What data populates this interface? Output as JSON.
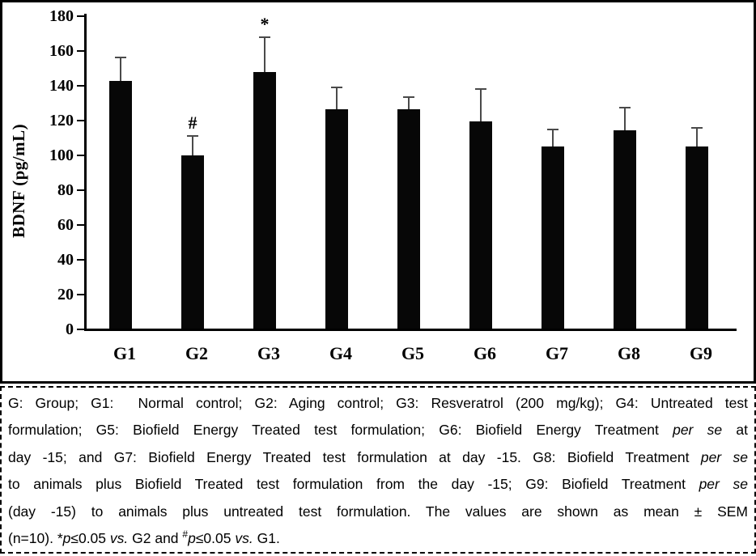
{
  "chart_data": {
    "type": "bar",
    "title": "",
    "xlabel": "",
    "ylabel": "BDNF (pg/mL)",
    "ylim": [
      0,
      180
    ],
    "ytick_interval": 20,
    "yticks": [
      0,
      20,
      40,
      60,
      80,
      100,
      120,
      140,
      160,
      180
    ],
    "categories": [
      "G1",
      "G2",
      "G3",
      "G4",
      "G5",
      "G6",
      "G7",
      "G8",
      "G9"
    ],
    "values": [
      142.5,
      99.5,
      147.5,
      126,
      126,
      119,
      104.5,
      114,
      104.5
    ],
    "errors": [
      13.5,
      11,
      20,
      12.5,
      7,
      18.5,
      10,
      13,
      11
    ],
    "error_type": "SEM",
    "markers": [
      "",
      "#",
      "*",
      "",
      "",
      "",
      "",
      "",
      ""
    ],
    "bar_color": "#070707",
    "error_bar_color": "#4a4a4a",
    "grid": false,
    "legend": false
  },
  "caption": {
    "lines": [
      [
        {
          "t": "G: Group; G1:  Normal control; G2: Aging control; G3: Resveratrol (200 mg/kg); G4: Untreated test"
        }
      ],
      [
        {
          "t": "formulation; G5: Biofield Energy Treated test formulation; G6: Biofield Energy Treatment "
        },
        {
          "t": "per se",
          "style": "italic"
        },
        {
          "t": " at"
        }
      ],
      [
        {
          "t": "day -15; and G7: Biofield Energy Treated test formulation at day -15. G8: Biofield Treatment "
        },
        {
          "t": "per se",
          "style": "italic"
        }
      ],
      [
        {
          "t": "to animals plus Biofield Treated test formulation from the day -15; G9: Biofield Treatment "
        },
        {
          "t": "per se",
          "style": "italic"
        }
      ],
      [
        {
          "t": "(day -15) to animals plus untreated test formulation. The values are shown as mean ± SEM"
        }
      ],
      [
        {
          "t": "(n=10). "
        },
        {
          "t": "*"
        },
        {
          "t": "p",
          "style": "italic"
        },
        {
          "t": "≤0.05 "
        },
        {
          "t": "vs.",
          "style": "italic"
        },
        {
          "t": " G2 and "
        },
        {
          "t": "#",
          "style": "sup"
        },
        {
          "t": "p",
          "style": "italic"
        },
        {
          "t": "≤0.05 "
        },
        {
          "t": "vs.",
          "style": "italic"
        },
        {
          "t": " G1."
        }
      ]
    ]
  }
}
